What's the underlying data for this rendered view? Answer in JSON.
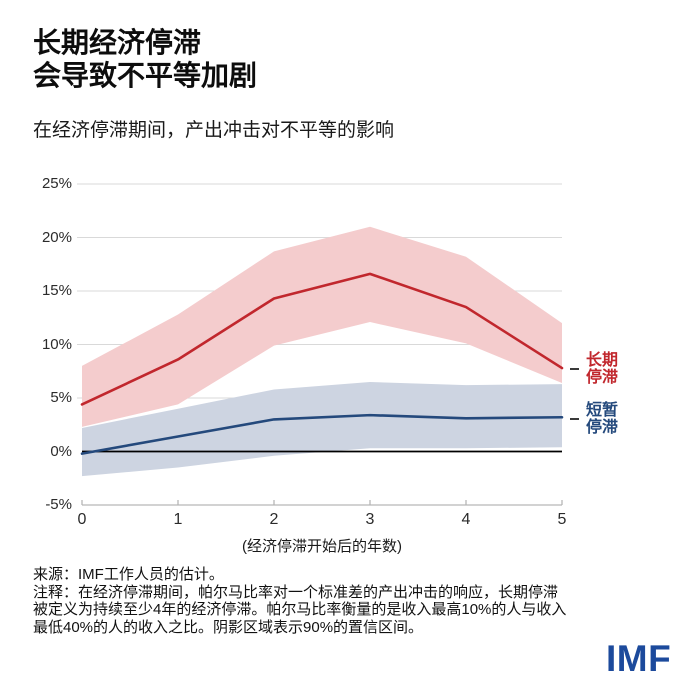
{
  "page": {
    "title_line1": "长期经济停滞",
    "title_line2": "会导致不平等加剧"
  },
  "chart_data": {
    "type": "line",
    "title": "在经济停滞期间，产出冲击对不平等的影响",
    "xlabel": "(经济停滞开始后的年数)",
    "ylabel": "",
    "x": [
      0,
      1,
      2,
      3,
      4,
      5
    ],
    "x_tick_labels": [
      "0",
      "1",
      "2",
      "3",
      "4",
      "5"
    ],
    "ylim": [
      -5,
      25
    ],
    "y_ticks": [
      25,
      20,
      15,
      10,
      5,
      0,
      -5
    ],
    "y_tick_labels": [
      "25%",
      "20%",
      "15%",
      "10%",
      "5%",
      "0%",
      "-5%"
    ],
    "gridlines": [
      25,
      20,
      15,
      10,
      5
    ],
    "zero_line": 0,
    "legend_position": "right",
    "series": [
      {
        "name": "长期停滞",
        "label_two_line": "长期\n停滞",
        "color": "#c1272d",
        "band_color": "#f4cccd",
        "values": [
          4.4,
          8.6,
          14.3,
          16.6,
          13.5,
          7.8
        ],
        "band_upper": [
          8.0,
          12.8,
          18.7,
          21.0,
          18.2,
          12.0
        ],
        "band_lower": [
          2.3,
          4.4,
          9.9,
          12.1,
          10.1,
          6.4
        ]
      },
      {
        "name": "短暂停滞",
        "label_two_line": "短暂\n停滞",
        "color": "#24497c",
        "band_color": "#cdd4e1",
        "values": [
          -0.2,
          1.4,
          3.0,
          3.4,
          3.1,
          3.2
        ],
        "band_upper": [
          2.2,
          4.0,
          5.8,
          6.5,
          6.2,
          6.3
        ],
        "band_lower": [
          -2.3,
          -1.5,
          -0.4,
          0.3,
          0.3,
          0.4
        ]
      }
    ]
  },
  "footer": {
    "lines": [
      "来源：IMF工作人员的估计。",
      "注释：在经济停滞期间，帕尔马比率对一个标准差的产出冲击的响应，长期停滞",
      "被定义为持续至少4年的经济停滞。帕尔马比率衡量的是收入最高10%的人与收入",
      "最低40%的人的收入之比。阴影区域表示90%的置信区间。"
    ]
  },
  "logo": {
    "text": "IMF",
    "color": "#1c4a9c"
  }
}
